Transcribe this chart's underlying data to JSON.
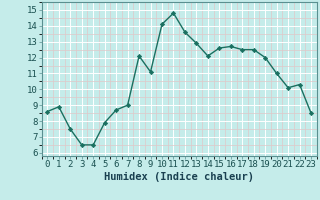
{
  "x": [
    0,
    1,
    2,
    3,
    4,
    5,
    6,
    7,
    8,
    9,
    10,
    11,
    12,
    13,
    14,
    15,
    16,
    17,
    18,
    19,
    20,
    21,
    22,
    23
  ],
  "y": [
    8.6,
    8.9,
    7.5,
    6.5,
    6.5,
    7.9,
    8.7,
    9.0,
    12.1,
    11.1,
    14.1,
    14.8,
    13.6,
    12.9,
    12.1,
    12.6,
    12.7,
    12.5,
    12.5,
    12.0,
    11.0,
    10.1,
    10.3,
    8.5
  ],
  "line_color": "#1a7060",
  "marker": "D",
  "markersize": 2.2,
  "linewidth": 1.0,
  "bg_color": "#c5ecea",
  "grid_major_color": "#ffffff",
  "grid_minor_color": "#dfc8c8",
  "xlabel": "Humidex (Indice chaleur)",
  "xlabel_fontsize": 7.5,
  "ylabel_ticks": [
    6,
    7,
    8,
    9,
    10,
    11,
    12,
    13,
    14,
    15
  ],
  "ylim": [
    5.8,
    15.5
  ],
  "xlim": [
    -0.5,
    23.5
  ],
  "tick_fontsize": 6.5
}
